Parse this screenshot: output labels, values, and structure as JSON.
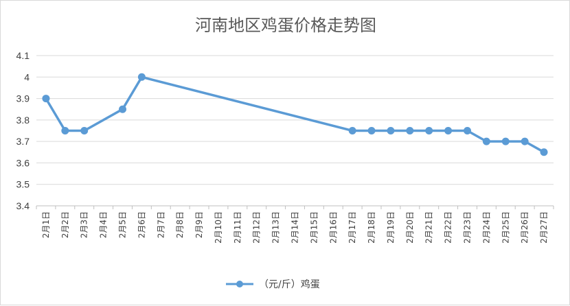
{
  "chart_data": {
    "type": "line",
    "title": "河南地区鸡蛋价格走势图",
    "xlabel": "",
    "ylabel": "",
    "ylim": [
      3.4,
      4.1
    ],
    "yticks": [
      "3.4",
      "3.5",
      "3.6",
      "3.7",
      "3.8",
      "3.9",
      "4",
      "4.1"
    ],
    "grid": true,
    "legend_position": "bottom",
    "categories": [
      "2月1日",
      "2月2日",
      "2月3日",
      "2月4日",
      "2月5日",
      "2月6日",
      "2月7日",
      "2月8日",
      "2月9日",
      "2月10日",
      "2月11日",
      "2月12日",
      "2月13日",
      "2月14日",
      "2月15日",
      "2月16日",
      "2月17日",
      "2月18日",
      "2月19日",
      "2月20日",
      "2月21日",
      "2月22日",
      "2月23日",
      "2月24日",
      "2月25日",
      "2月26日",
      "2月27日"
    ],
    "series": [
      {
        "name": "（元/斤）鸡蛋",
        "color": "#5b9bd5",
        "points": [
          {
            "x": "2月1日",
            "y": 3.9
          },
          {
            "x": "2月2日",
            "y": 3.75
          },
          {
            "x": "2月3日",
            "y": 3.75
          },
          {
            "x": "2月5日",
            "y": 3.85
          },
          {
            "x": "2月6日",
            "y": 4.0
          },
          {
            "x": "2月17日",
            "y": 3.75
          },
          {
            "x": "2月18日",
            "y": 3.75
          },
          {
            "x": "2月19日",
            "y": 3.75
          },
          {
            "x": "2月20日",
            "y": 3.75
          },
          {
            "x": "2月21日",
            "y": 3.75
          },
          {
            "x": "2月22日",
            "y": 3.75
          },
          {
            "x": "2月23日",
            "y": 3.75
          },
          {
            "x": "2月24日",
            "y": 3.7
          },
          {
            "x": "2月25日",
            "y": 3.7
          },
          {
            "x": "2月26日",
            "y": 3.7
          },
          {
            "x": "2月27日",
            "y": 3.65
          }
        ]
      }
    ]
  }
}
